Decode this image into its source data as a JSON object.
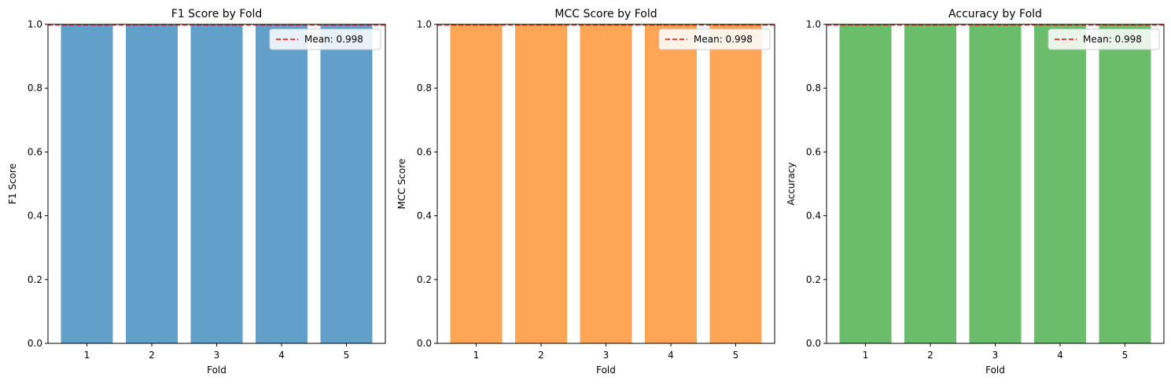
{
  "chart_data": [
    {
      "type": "bar",
      "title": "F1 Score by Fold",
      "xlabel": "Fold",
      "ylabel": "F1 Score",
      "categories": [
        "1",
        "2",
        "3",
        "4",
        "5"
      ],
      "values": [
        1.0,
        1.0,
        1.0,
        1.0,
        1.0
      ],
      "ylim": [
        0,
        1.0
      ],
      "yticks": [
        "0.0",
        "0.2",
        "0.4",
        "0.6",
        "0.8",
        "1.0"
      ],
      "color": "#1f77b4",
      "bar_opacity": 0.7,
      "mean": 0.998,
      "mean_label": "Mean: 0.998",
      "mean_line_color": "#ff0000",
      "legend_position": "upper right",
      "grid": false
    },
    {
      "type": "bar",
      "title": "MCC Score by Fold",
      "xlabel": "Fold",
      "ylabel": "MCC Score",
      "categories": [
        "1",
        "2",
        "3",
        "4",
        "5"
      ],
      "values": [
        1.0,
        1.0,
        1.0,
        1.0,
        1.0
      ],
      "ylim": [
        0,
        1.0
      ],
      "yticks": [
        "0.0",
        "0.2",
        "0.4",
        "0.6",
        "0.8",
        "1.0"
      ],
      "color": "#ff7f0e",
      "bar_opacity": 0.7,
      "mean": 0.998,
      "mean_label": "Mean: 0.998",
      "mean_line_color": "#ff0000",
      "legend_position": "upper right",
      "grid": false
    },
    {
      "type": "bar",
      "title": "Accuracy by Fold",
      "xlabel": "Fold",
      "ylabel": "Accuracy",
      "categories": [
        "1",
        "2",
        "3",
        "4",
        "5"
      ],
      "values": [
        1.0,
        1.0,
        1.0,
        1.0,
        1.0
      ],
      "ylim": [
        0,
        1.0
      ],
      "yticks": [
        "0.0",
        "0.2",
        "0.4",
        "0.6",
        "0.8",
        "1.0"
      ],
      "color": "#2ca02c",
      "bar_opacity": 0.7,
      "mean": 0.998,
      "mean_label": "Mean: 0.998",
      "mean_line_color": "#ff0000",
      "legend_position": "upper right",
      "grid": false
    }
  ]
}
